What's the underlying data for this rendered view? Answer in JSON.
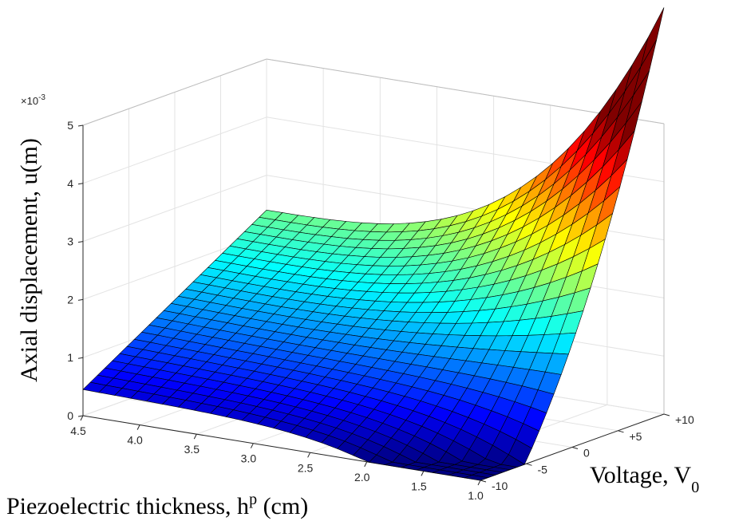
{
  "chart_data": {
    "type": "surface",
    "title": "",
    "xlabel": {
      "text": "Piezoelectric thickness, h",
      "sup": "p",
      "unit": " (cm)"
    },
    "ylabel": {
      "text": "Voltage, V",
      "sub": "0"
    },
    "zlabel": "Axial displacement, u(m)",
    "z_exponent": {
      "base": "×10",
      "power": "-3"
    },
    "x_ticks": [
      "4.5",
      "4.0",
      "3.5",
      "3.0",
      "2.5",
      "2.0",
      "1.5",
      "1.0"
    ],
    "x_tick_values": [
      4.5,
      4.0,
      3.5,
      3.0,
      2.5,
      2.0,
      1.5,
      1.0
    ],
    "y_ticks": [
      "-10",
      "-5",
      "0",
      "+5",
      "+10"
    ],
    "y_tick_values": [
      -10,
      -5,
      0,
      5,
      10
    ],
    "z_ticks": [
      "0",
      "1",
      "2",
      "3",
      "4",
      "5"
    ],
    "z_tick_values": [
      0,
      1,
      2,
      3,
      4,
      5
    ],
    "xlim": [
      1.0,
      4.5
    ],
    "ylim": [
      -10,
      10
    ],
    "zlim": [
      0,
      5
    ],
    "z_scale": 0.001,
    "grid": true,
    "colormap": "jet",
    "edge_color": "#000000",
    "surface_samples": [
      {
        "h": 4.5,
        "V": -10,
        "u": 0.45
      },
      {
        "h": 4.5,
        "V": 10,
        "u": 2.4
      },
      {
        "h": 1.0,
        "V": -10,
        "u": 0.05
      },
      {
        "h": 1.0,
        "V": 0,
        "u": 1.45
      },
      {
        "h": 1.0,
        "V": 10,
        "u": 5.0
      },
      {
        "h": 2.5,
        "V": -10,
        "u": 0.85
      },
      {
        "h": 2.5,
        "V": 10,
        "u": 2.55
      }
    ]
  }
}
